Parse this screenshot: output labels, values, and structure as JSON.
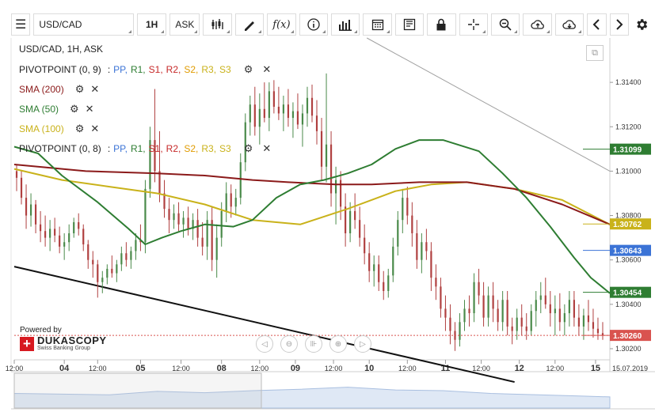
{
  "toolbar": {
    "menu_icon": "hamburger-icon",
    "symbol": "USD/CAD",
    "timeframe": "1H",
    "side": "ASK",
    "icons": [
      "candles-icon",
      "pen-icon",
      "fx-icon",
      "info-icon",
      "bars-icon",
      "calendar-icon",
      "news-icon",
      "lock-icon",
      "crosshair-icon",
      "zoom-icon",
      "upload-icon",
      "download-icon",
      "prev-icon",
      "next-icon",
      "gear-icon"
    ],
    "fx_label": "f(x)"
  },
  "chart_title": "USD/CAD, 1H, ASK",
  "indicators": {
    "pivot1": {
      "label": "PIVOTPOINT (0, 9)",
      "items": [
        "PP,",
        "R1,",
        "S1,",
        "R2,",
        "S2,",
        "R3,",
        "S3"
      ]
    },
    "sma200": {
      "label": "SMA (200)",
      "color": "#8b1a1a"
    },
    "sma50": {
      "label": "SMA (50)",
      "color": "#2e7d32"
    },
    "sma100": {
      "label": "SMA (100)",
      "color": "#c9b21a"
    },
    "pivot2": {
      "label": "PIVOTPOINT (0, 8)",
      "items": [
        "PP,",
        "R1,",
        "S1,",
        "R2,",
        "S2,",
        "R3,",
        "S3"
      ]
    },
    "pivot_colors": [
      "#3b73d6",
      "#2e7d32",
      "#c62828",
      "#c62828",
      "#e09b00",
      "#c9b21a",
      "#c9b21a"
    ],
    "separator": ":"
  },
  "powered": {
    "text": "Powered by",
    "brand": "DUKASCOPY",
    "sub": "Swiss Banking Group"
  },
  "chart_data": {
    "type": "candlestick",
    "title": "USD/CAD, 1H, ASK",
    "ylim": [
      1.3015,
      1.316
    ],
    "xlim": [
      0,
      250
    ],
    "y_ticks": [
      1.314,
      1.312,
      1.31,
      1.308,
      1.306,
      1.304,
      1.302
    ],
    "y_tick_labels": [
      "1.31400",
      "1.31200",
      "1.31000",
      "1.30800",
      "1.30600",
      "1.30400",
      "1.30200"
    ],
    "x_ticks": [
      0,
      21,
      35,
      53,
      70,
      87,
      103,
      118,
      134,
      149,
      165,
      181,
      196,
      212,
      227,
      244
    ],
    "x_tick_labels": [
      "12:00",
      "04",
      "12:00",
      "05",
      "12:00",
      "08",
      "12:00",
      "09",
      "12:00",
      "10",
      "12:00",
      "11",
      "12:00",
      "12",
      "12:00",
      "15"
    ],
    "date_label": "15.07.2019",
    "price_labels": [
      {
        "value": 1.31099,
        "text": "1.31099",
        "color": "#2e7d32"
      },
      {
        "value": 1.30762,
        "text": "1.30762",
        "color": "#c9b21a"
      },
      {
        "value": 1.30643,
        "text": "1.30643",
        "color": "#3b73d6"
      },
      {
        "value": 1.30454,
        "text": "1.30454",
        "color": "#2e7d32"
      },
      {
        "value": 1.3026,
        "text": "1.30260",
        "color": "#d9534f"
      }
    ],
    "current_price": 1.3026,
    "series": {
      "sma50": [
        [
          0,
          1.3111
        ],
        [
          10,
          1.3108
        ],
        [
          20,
          1.3098
        ],
        [
          35,
          1.3086
        ],
        [
          48,
          1.3074
        ],
        [
          55,
          1.3067
        ],
        [
          62,
          1.307
        ],
        [
          70,
          1.3073
        ],
        [
          80,
          1.3076
        ],
        [
          92,
          1.3075
        ],
        [
          100,
          1.3078
        ],
        [
          110,
          1.3088
        ],
        [
          120,
          1.3094
        ],
        [
          130,
          1.3096
        ],
        [
          140,
          1.3099
        ],
        [
          150,
          1.3103
        ],
        [
          160,
          1.311
        ],
        [
          170,
          1.3114
        ],
        [
          180,
          1.3114
        ],
        [
          195,
          1.3109
        ],
        [
          205,
          1.3099
        ],
        [
          215,
          1.3088
        ],
        [
          225,
          1.3075
        ],
        [
          235,
          1.3061
        ],
        [
          242,
          1.3052
        ],
        [
          250,
          1.3045
        ]
      ],
      "sma200": [
        [
          0,
          1.3103
        ],
        [
          30,
          1.31
        ],
        [
          60,
          1.3099
        ],
        [
          80,
          1.3098
        ],
        [
          100,
          1.3096
        ],
        [
          115,
          1.3095
        ],
        [
          135,
          1.3094
        ],
        [
          150,
          1.3094
        ],
        [
          170,
          1.3095
        ],
        [
          190,
          1.3095
        ],
        [
          210,
          1.3092
        ],
        [
          230,
          1.3085
        ],
        [
          250,
          1.3076
        ]
      ],
      "sma100": [
        [
          0,
          1.3101
        ],
        [
          20,
          1.3096
        ],
        [
          40,
          1.3093
        ],
        [
          60,
          1.309
        ],
        [
          80,
          1.3085
        ],
        [
          100,
          1.3078
        ],
        [
          120,
          1.3076
        ],
        [
          140,
          1.3083
        ],
        [
          160,
          1.3091
        ],
        [
          175,
          1.3094
        ],
        [
          190,
          1.3095
        ],
        [
          210,
          1.3092
        ],
        [
          230,
          1.3087
        ],
        [
          250,
          1.3076
        ]
      ],
      "trendline_upper": [
        [
          148,
          1.316
        ],
        [
          250,
          1.31
        ]
      ],
      "trendline_lower": [
        [
          0,
          1.3057
        ],
        [
          210,
          1.3005
        ]
      ]
    },
    "candles": [
      [
        1,
        1.31,
        1.3103,
        1.3091,
        1.3097
      ],
      [
        3,
        1.3097,
        1.31,
        1.3085,
        1.3088
      ],
      [
        5,
        1.3088,
        1.3094,
        1.3074,
        1.308
      ],
      [
        7,
        1.308,
        1.309,
        1.3075,
        1.3085
      ],
      [
        9,
        1.3085,
        1.3087,
        1.3072,
        1.3076
      ],
      [
        11,
        1.3076,
        1.3082,
        1.3068,
        1.3073
      ],
      [
        13,
        1.3073,
        1.308,
        1.3066,
        1.307
      ],
      [
        15,
        1.307,
        1.3078,
        1.3064,
        1.3074
      ],
      [
        17,
        1.3074,
        1.3079,
        1.3068,
        1.3071
      ],
      [
        19,
        1.3071,
        1.3075,
        1.3063,
        1.3066
      ],
      [
        21,
        1.3066,
        1.3072,
        1.306,
        1.3068
      ],
      [
        23,
        1.3068,
        1.3076,
        1.3064,
        1.3072
      ],
      [
        25,
        1.3072,
        1.3079,
        1.307,
        1.3077
      ],
      [
        27,
        1.3077,
        1.3081,
        1.3071,
        1.3074
      ],
      [
        29,
        1.3074,
        1.3076,
        1.3064,
        1.3067
      ],
      [
        31,
        1.3067,
        1.3069,
        1.3056,
        1.306
      ],
      [
        33,
        1.306,
        1.3064,
        1.3052,
        1.3058
      ],
      [
        35,
        1.3058,
        1.306,
        1.3043,
        1.305
      ],
      [
        37,
        1.305,
        1.3055,
        1.3045,
        1.3052
      ],
      [
        39,
        1.3052,
        1.3058,
        1.3049,
        1.3056
      ],
      [
        41,
        1.3056,
        1.3062,
        1.3052,
        1.3054
      ],
      [
        43,
        1.3054,
        1.306,
        1.305,
        1.3058
      ],
      [
        45,
        1.3058,
        1.3066,
        1.3055,
        1.3063
      ],
      [
        47,
        1.3063,
        1.3068,
        1.3057,
        1.306
      ],
      [
        49,
        1.306,
        1.3066,
        1.3056,
        1.3064
      ],
      [
        51,
        1.3064,
        1.3072,
        1.306,
        1.3069
      ],
      [
        53,
        1.3069,
        1.3076,
        1.3064,
        1.3068
      ],
      [
        55,
        1.3068,
        1.3096,
        1.3063,
        1.3092
      ],
      [
        57,
        1.3092,
        1.312,
        1.3088,
        1.3114
      ],
      [
        59,
        1.3114,
        1.3137,
        1.3095,
        1.31
      ],
      [
        61,
        1.31,
        1.3118,
        1.3086,
        1.309
      ],
      [
        63,
        1.309,
        1.3096,
        1.3079,
        1.3083
      ],
      [
        65,
        1.3083,
        1.3088,
        1.3072,
        1.3078
      ],
      [
        67,
        1.3078,
        1.3085,
        1.3074,
        1.3081
      ],
      [
        69,
        1.3081,
        1.3086,
        1.3073,
        1.3076
      ],
      [
        71,
        1.3076,
        1.3082,
        1.307,
        1.3079
      ],
      [
        73,
        1.3079,
        1.3084,
        1.3071,
        1.3074
      ],
      [
        75,
        1.3074,
        1.3081,
        1.3069,
        1.3078
      ],
      [
        77,
        1.3078,
        1.3083,
        1.3066,
        1.307
      ],
      [
        79,
        1.307,
        1.3077,
        1.3062,
        1.3066
      ],
      [
        81,
        1.3066,
        1.3082,
        1.306,
        1.3078
      ],
      [
        83,
        1.3078,
        1.3084,
        1.3055,
        1.306
      ],
      [
        85,
        1.306,
        1.3076,
        1.3052,
        1.307
      ],
      [
        87,
        1.307,
        1.3086,
        1.3066,
        1.3082
      ],
      [
        89,
        1.3082,
        1.3095,
        1.3077,
        1.309
      ],
      [
        91,
        1.309,
        1.3094,
        1.3079,
        1.3084
      ],
      [
        93,
        1.3084,
        1.3092,
        1.308,
        1.3088
      ],
      [
        95,
        1.3088,
        1.3108,
        1.3085,
        1.3104
      ],
      [
        97,
        1.3104,
        1.3126,
        1.31,
        1.3122
      ],
      [
        99,
        1.3122,
        1.3134,
        1.3116,
        1.313
      ],
      [
        101,
        1.313,
        1.3138,
        1.3116,
        1.312
      ],
      [
        103,
        1.312,
        1.3135,
        1.3112,
        1.3128
      ],
      [
        105,
        1.3128,
        1.314,
        1.3122,
        1.3124
      ],
      [
        107,
        1.3124,
        1.314,
        1.3118,
        1.3136
      ],
      [
        109,
        1.3136,
        1.3141,
        1.3126,
        1.3129
      ],
      [
        111,
        1.3129,
        1.3138,
        1.3123,
        1.3126
      ],
      [
        113,
        1.3126,
        1.3134,
        1.3118,
        1.313
      ],
      [
        115,
        1.313,
        1.3137,
        1.312,
        1.3124
      ],
      [
        117,
        1.3124,
        1.3131,
        1.3115,
        1.3127
      ],
      [
        119,
        1.3127,
        1.3135,
        1.3119,
        1.3121
      ],
      [
        121,
        1.3121,
        1.313,
        1.3111,
        1.3126
      ],
      [
        123,
        1.3126,
        1.3138,
        1.312,
        1.3133
      ],
      [
        125,
        1.3133,
        1.3139,
        1.3122,
        1.3125
      ],
      [
        127,
        1.3125,
        1.3132,
        1.3112,
        1.3118
      ],
      [
        129,
        1.3118,
        1.3124,
        1.3096,
        1.3102
      ],
      [
        131,
        1.3102,
        1.3144,
        1.3095,
        1.3112
      ],
      [
        133,
        1.3112,
        1.3118,
        1.3084,
        1.309
      ],
      [
        135,
        1.309,
        1.3102,
        1.3076,
        1.3096
      ],
      [
        137,
        1.3096,
        1.31,
        1.3078,
        1.3084
      ],
      [
        139,
        1.3084,
        1.309,
        1.3066,
        1.3072
      ],
      [
        141,
        1.3072,
        1.3086,
        1.3068,
        1.3082
      ],
      [
        143,
        1.3082,
        1.309,
        1.3074,
        1.3078
      ],
      [
        145,
        1.3078,
        1.3084,
        1.3066,
        1.307
      ],
      [
        147,
        1.307,
        1.3076,
        1.3058,
        1.3063
      ],
      [
        149,
        1.3063,
        1.3068,
        1.305,
        1.3055
      ],
      [
        151,
        1.3055,
        1.3062,
        1.3048,
        1.3058
      ],
      [
        153,
        1.3058,
        1.3062,
        1.3046,
        1.305
      ],
      [
        155,
        1.305,
        1.3055,
        1.3042,
        1.3046
      ],
      [
        157,
        1.3046,
        1.3056,
        1.3043,
        1.3053
      ],
      [
        159,
        1.3053,
        1.307,
        1.305,
        1.3066
      ],
      [
        161,
        1.3066,
        1.3082,
        1.3062,
        1.3078
      ],
      [
        163,
        1.3078,
        1.3092,
        1.3072,
        1.3088
      ],
      [
        165,
        1.3088,
        1.3093,
        1.3076,
        1.308
      ],
      [
        167,
        1.308,
        1.3086,
        1.3066,
        1.3072
      ],
      [
        169,
        1.3072,
        1.3078,
        1.3056,
        1.306
      ],
      [
        171,
        1.306,
        1.3072,
        1.3054,
        1.3068
      ],
      [
        173,
        1.3068,
        1.3074,
        1.306,
        1.3064
      ],
      [
        175,
        1.3064,
        1.3068,
        1.3046,
        1.3052
      ],
      [
        177,
        1.3052,
        1.3058,
        1.3042,
        1.3048
      ],
      [
        179,
        1.3048,
        1.3052,
        1.3034,
        1.3038
      ],
      [
        181,
        1.3038,
        1.3044,
        1.3028,
        1.3034
      ],
      [
        183,
        1.3034,
        1.304,
        1.3022,
        1.3028
      ],
      [
        185,
        1.3028,
        1.3032,
        1.3019,
        1.3024
      ],
      [
        187,
        1.3024,
        1.3036,
        1.3021,
        1.3032
      ],
      [
        189,
        1.3032,
        1.3042,
        1.3028,
        1.3038
      ],
      [
        191,
        1.3038,
        1.3044,
        1.303,
        1.3036
      ],
      [
        193,
        1.3036,
        1.3054,
        1.3032,
        1.305
      ],
      [
        195,
        1.305,
        1.3056,
        1.304,
        1.3044
      ],
      [
        197,
        1.3044,
        1.305,
        1.303,
        1.3034
      ],
      [
        199,
        1.3034,
        1.3048,
        1.303,
        1.3044
      ],
      [
        201,
        1.3044,
        1.305,
        1.3032,
        1.3038
      ],
      [
        203,
        1.3038,
        1.3042,
        1.3028,
        1.3032
      ],
      [
        205,
        1.3032,
        1.3046,
        1.3028,
        1.3042
      ],
      [
        207,
        1.3042,
        1.3046,
        1.3026,
        1.303
      ],
      [
        209,
        1.303,
        1.3034,
        1.3022,
        1.3028
      ],
      [
        211,
        1.3028,
        1.3038,
        1.3024,
        1.3034
      ],
      [
        213,
        1.3034,
        1.304,
        1.3026,
        1.303
      ],
      [
        215,
        1.303,
        1.3036,
        1.3024,
        1.3028
      ],
      [
        217,
        1.3028,
        1.304,
        1.3026,
        1.3037
      ],
      [
        219,
        1.3037,
        1.3046,
        1.303,
        1.3042
      ],
      [
        221,
        1.3042,
        1.305,
        1.3036,
        1.3044
      ],
      [
        223,
        1.3044,
        1.3052,
        1.3038,
        1.304
      ],
      [
        225,
        1.304,
        1.3046,
        1.303,
        1.3036
      ],
      [
        227,
        1.3036,
        1.3044,
        1.3026,
        1.3038
      ],
      [
        229,
        1.3038,
        1.3045,
        1.3028,
        1.3032
      ],
      [
        231,
        1.3032,
        1.304,
        1.3026,
        1.3036
      ],
      [
        233,
        1.3036,
        1.3046,
        1.303,
        1.3042
      ],
      [
        235,
        1.3042,
        1.3046,
        1.303,
        1.3034
      ],
      [
        237,
        1.3034,
        1.304,
        1.3026,
        1.303
      ],
      [
        239,
        1.303,
        1.3038,
        1.3024,
        1.3035
      ],
      [
        241,
        1.3035,
        1.3042,
        1.3028,
        1.3032
      ],
      [
        243,
        1.3032,
        1.3038,
        1.3025,
        1.3029
      ],
      [
        245,
        1.3029,
        1.3034,
        1.3024,
        1.3027
      ],
      [
        247,
        1.3027,
        1.3032,
        1.3024,
        1.3026
      ]
    ],
    "up_color": "#4a8a4a",
    "down_color": "#b04040",
    "navigator": [
      [
        0,
        0.58
      ],
      [
        20,
        0.6
      ],
      [
        40,
        0.62
      ],
      [
        60,
        0.52
      ],
      [
        80,
        0.56
      ],
      [
        100,
        0.5
      ],
      [
        120,
        0.46
      ],
      [
        140,
        0.4
      ],
      [
        160,
        0.48
      ],
      [
        180,
        0.5
      ],
      [
        200,
        0.58
      ],
      [
        220,
        0.62
      ],
      [
        240,
        0.66
      ],
      [
        250,
        0.68
      ]
    ]
  }
}
